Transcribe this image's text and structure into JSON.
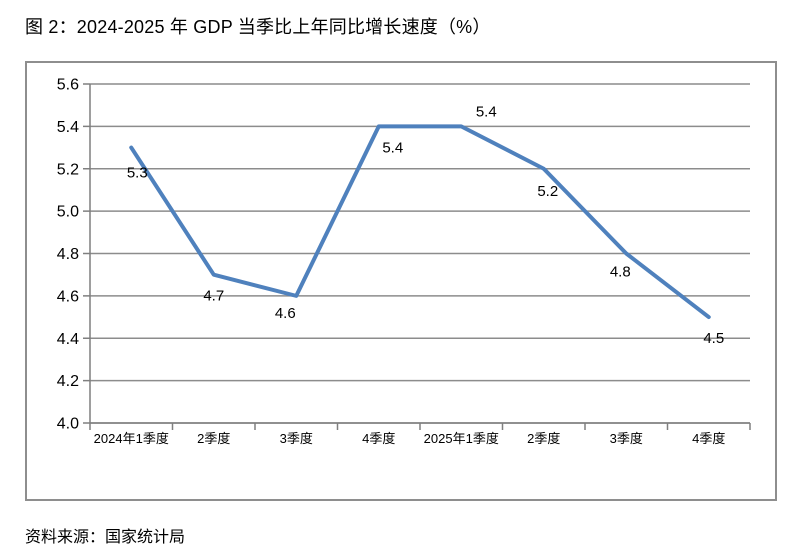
{
  "page": {
    "title": "图 2：2024-2025 年 GDP 当季比上年同比增长速度（%）",
    "source": "资料来源：国家统计局"
  },
  "chart_data": {
    "type": "line",
    "title": "图 2：2024-2025 年 GDP 当季比上年同比增长速度（%）",
    "categories": [
      "2024年1季度",
      "2季度",
      "3季度",
      "4季度",
      "2025年1季度",
      "2季度",
      "3季度",
      "4季度"
    ],
    "values": [
      5.3,
      4.7,
      4.6,
      5.4,
      5.4,
      5.2,
      4.8,
      4.5
    ],
    "data_labels": [
      "5.3",
      "4.7",
      "4.6",
      "5.4",
      "5.4",
      "5.2",
      "4.8",
      "4.5"
    ],
    "xlabel": "",
    "ylabel": "",
    "ylim": [
      4.0,
      5.6
    ],
    "ytick_step": 0.2,
    "yticks": [
      "4.0",
      "4.2",
      "4.4",
      "4.6",
      "4.8",
      "5.0",
      "5.2",
      "5.4",
      "5.6"
    ],
    "grid": "horizontal",
    "legend": "none",
    "source": "资料来源：国家统计局",
    "colors": {
      "line": "#4F81BD",
      "gridline": "#8C8C8C",
      "axis": "#7F7F7F",
      "border": "#8E8E8E",
      "text": "#000000"
    }
  }
}
